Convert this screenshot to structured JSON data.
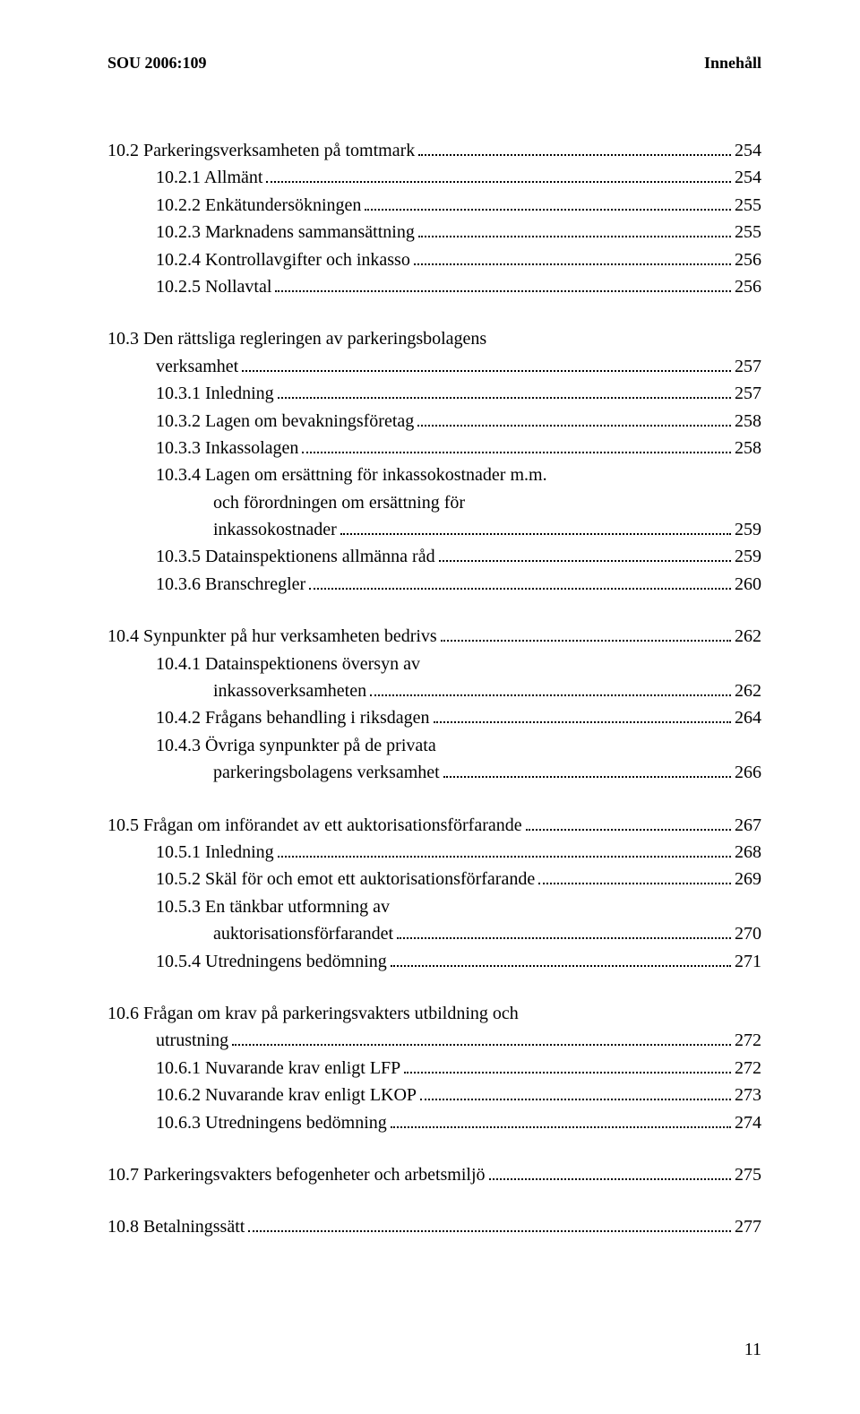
{
  "header": {
    "left": "SOU 2006:109",
    "right": "Innehåll"
  },
  "toc": [
    {
      "entries": [
        {
          "level": 0,
          "label": "10.2  Parkeringsverksamheten på tomtmark",
          "page": "254"
        },
        {
          "level": 1,
          "label": "10.2.1 Allmänt",
          "page": "254"
        },
        {
          "level": 1,
          "label": "10.2.2 Enkätundersökningen",
          "page": "255"
        },
        {
          "level": 1,
          "label": "10.2.3 Marknadens sammansättning",
          "page": "255"
        },
        {
          "level": 1,
          "label": "10.2.4 Kontrollavgifter och inkasso",
          "page": "256"
        },
        {
          "level": 1,
          "label": "10.2.5 Nollavtal",
          "page": "256"
        }
      ]
    },
    {
      "entries": [
        {
          "level": 0,
          "label": "10.3  Den rättsliga regleringen av parkeringsbolagens",
          "cont": "verksamhet",
          "contIndent": 1,
          "page": "257"
        },
        {
          "level": 1,
          "label": "10.3.1 Inledning",
          "page": "257"
        },
        {
          "level": 1,
          "label": "10.3.2 Lagen om bevakningsföretag",
          "page": "258"
        },
        {
          "level": 1,
          "label": "10.3.3 Inkassolagen",
          "page": "258"
        },
        {
          "level": 1,
          "label": "10.3.4 Lagen om ersättning för inkassokostnader m.m.",
          "cont": "och förordningen om ersättning för",
          "cont2": "inkassokostnader",
          "contIndent": 2,
          "page": "259"
        },
        {
          "level": 1,
          "label": "10.3.5 Datainspektionens allmänna råd",
          "page": "259"
        },
        {
          "level": 1,
          "label": "10.3.6 Branschregler",
          "page": "260"
        }
      ]
    },
    {
      "entries": [
        {
          "level": 0,
          "label": "10.4  Synpunkter på hur verksamheten bedrivs",
          "page": "262"
        },
        {
          "level": 1,
          "label": "10.4.1 Datainspektionens översyn av",
          "cont": "inkassoverksamheten",
          "contIndent": 2,
          "page": "262"
        },
        {
          "level": 1,
          "label": "10.4.2 Frågans behandling i riksdagen",
          "page": "264"
        },
        {
          "level": 1,
          "label": "10.4.3 Övriga synpunkter på de privata",
          "cont": "parkeringsbolagens verksamhet",
          "contIndent": 2,
          "page": "266"
        }
      ]
    },
    {
      "entries": [
        {
          "level": 0,
          "label": "10.5  Frågan om införandet av ett auktorisationsförfarande",
          "page": "267"
        },
        {
          "level": 1,
          "label": "10.5.1 Inledning",
          "page": "268"
        },
        {
          "level": 1,
          "label": "10.5.2 Skäl för och emot ett auktorisationsförfarande",
          "page": "269"
        },
        {
          "level": 1,
          "label": "10.5.3 En tänkbar utformning av",
          "cont": "auktorisationsförfarandet",
          "contIndent": 2,
          "page": "270"
        },
        {
          "level": 1,
          "label": "10.5.4 Utredningens bedömning",
          "page": "271"
        }
      ]
    },
    {
      "entries": [
        {
          "level": 0,
          "label": "10.6  Frågan om krav på parkeringsvakters utbildning och",
          "cont": "utrustning",
          "contIndent": 1,
          "page": "272"
        },
        {
          "level": 1,
          "label": "10.6.1 Nuvarande krav enligt LFP",
          "page": "272"
        },
        {
          "level": 1,
          "label": "10.6.2 Nuvarande krav enligt LKOP",
          "page": "273"
        },
        {
          "level": 1,
          "label": "10.6.3 Utredningens bedömning",
          "page": "274"
        }
      ]
    },
    {
      "entries": [
        {
          "level": 0,
          "label": "10.7  Parkeringsvakters befogenheter och arbetsmiljö",
          "page": "275"
        }
      ]
    },
    {
      "entries": [
        {
          "level": 0,
          "label": "10.8  Betalningssätt",
          "page": "277"
        }
      ]
    }
  ],
  "pageNumber": "11"
}
